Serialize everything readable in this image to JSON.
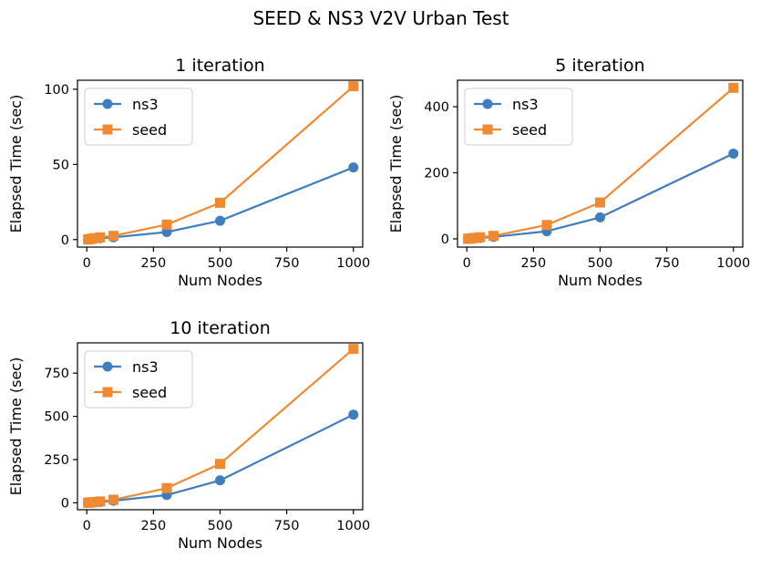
{
  "figure": {
    "suptitle": "SEED & NS3 V2V Urban Test"
  },
  "chart_data": [
    {
      "type": "line",
      "title": "1 iteration",
      "xlabel": "Num Nodes",
      "ylabel": "Elapsed Time (sec)",
      "x": [
        5,
        10,
        20,
        30,
        50,
        100,
        300,
        500,
        1000
      ],
      "xlim": [
        -35,
        1035
      ],
      "ylim": [
        -5,
        106
      ],
      "xticks": [
        0,
        250,
        500,
        750,
        1000
      ],
      "yticks": [
        0,
        50,
        100
      ],
      "legend": "top-left",
      "series": [
        {
          "name": "ns3",
          "marker": "circle",
          "color": "#3f7dbf",
          "values": [
            0,
            0.2,
            0.4,
            0.6,
            0.9,
            1.5,
            5,
            12.5,
            48
          ]
        },
        {
          "name": "seed",
          "marker": "square",
          "color": "#f08a32",
          "values": [
            0.1,
            0.3,
            0.6,
            1,
            1.5,
            2.5,
            10,
            24.5,
            102
          ]
        }
      ]
    },
    {
      "type": "line",
      "title": "5 iteration",
      "xlabel": "Num Nodes",
      "ylabel": "Elapsed Time (sec)",
      "x": [
        5,
        10,
        20,
        30,
        50,
        100,
        300,
        500,
        1000
      ],
      "xlim": [
        -35,
        1035
      ],
      "ylim": [
        -25,
        480
      ],
      "xticks": [
        0,
        250,
        500,
        750,
        1000
      ],
      "yticks": [
        0,
        200,
        400
      ],
      "legend": "top-left",
      "series": [
        {
          "name": "ns3",
          "marker": "circle",
          "color": "#3f7dbf",
          "values": [
            0,
            0.5,
            1,
            2,
            3,
            6,
            23,
            65,
            258
          ]
        },
        {
          "name": "seed",
          "marker": "square",
          "color": "#f08a32",
          "values": [
            0,
            1,
            2,
            3,
            5,
            9,
            42,
            110,
            457
          ]
        }
      ]
    },
    {
      "type": "line",
      "title": "10 iteration",
      "xlabel": "Num Nodes",
      "ylabel": "Elapsed Time (sec)",
      "x": [
        5,
        10,
        20,
        30,
        50,
        100,
        300,
        500,
        1000
      ],
      "xlim": [
        -35,
        1035
      ],
      "ylim": [
        -40,
        925
      ],
      "xticks": [
        0,
        250,
        500,
        750,
        1000
      ],
      "yticks": [
        0,
        250,
        500,
        750
      ],
      "legend": "top-left",
      "series": [
        {
          "name": "ns3",
          "marker": "circle",
          "color": "#3f7dbf",
          "values": [
            0,
            1,
            2,
            3,
            5,
            12,
            45,
            130,
            510
          ]
        },
        {
          "name": "seed",
          "marker": "square",
          "color": "#f08a32",
          "values": [
            0,
            2,
            3,
            5,
            8,
            18,
            85,
            225,
            890
          ]
        }
      ]
    }
  ]
}
